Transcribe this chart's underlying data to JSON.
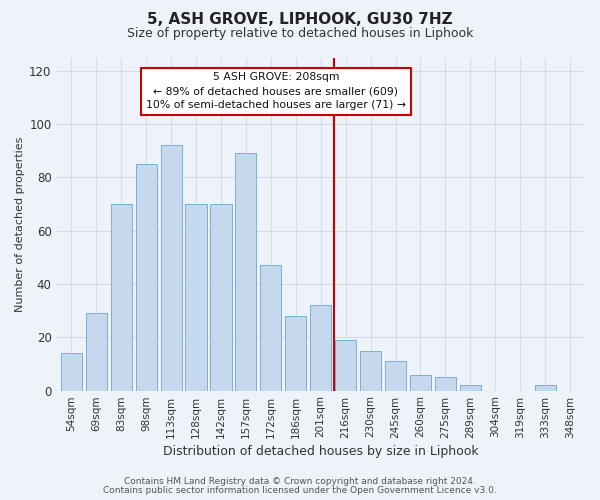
{
  "title": "5, ASH GROVE, LIPHOOK, GU30 7HZ",
  "subtitle": "Size of property relative to detached houses in Liphook",
  "xlabel": "Distribution of detached houses by size in Liphook",
  "ylabel": "Number of detached properties",
  "bar_labels": [
    "54sqm",
    "69sqm",
    "83sqm",
    "98sqm",
    "113sqm",
    "128sqm",
    "142sqm",
    "157sqm",
    "172sqm",
    "186sqm",
    "201sqm",
    "216sqm",
    "230sqm",
    "245sqm",
    "260sqm",
    "275sqm",
    "289sqm",
    "304sqm",
    "319sqm",
    "333sqm",
    "348sqm"
  ],
  "bar_heights": [
    14,
    29,
    70,
    85,
    92,
    70,
    70,
    89,
    47,
    28,
    32,
    19,
    15,
    11,
    6,
    5,
    2,
    0,
    0,
    2,
    0
  ],
  "bar_color": "#c5d8ee",
  "bar_edge_color": "#7aafd4",
  "ylim": [
    0,
    125
  ],
  "yticks": [
    0,
    20,
    40,
    60,
    80,
    100,
    120
  ],
  "vline_x_idx": 10.55,
  "vline_color": "#cc0000",
  "ann_line1": "5 ASH GROVE: 208sqm",
  "ann_line2": "← 89% of detached houses are smaller (609)",
  "ann_line3": "10% of semi-detached houses are larger (71) →",
  "annotation_box_edge": "#cc0000",
  "footer1": "Contains HM Land Registry data © Crown copyright and database right 2024.",
  "footer2": "Contains public sector information licensed under the Open Government Licence v3.0.",
  "background_color": "#eef2f9",
  "grid_color": "#d8dce8",
  "title_fontsize": 11,
  "subtitle_fontsize": 9,
  "xlabel_fontsize": 9,
  "ylabel_fontsize": 8,
  "tick_fontsize": 7.5,
  "footer_fontsize": 6.5
}
